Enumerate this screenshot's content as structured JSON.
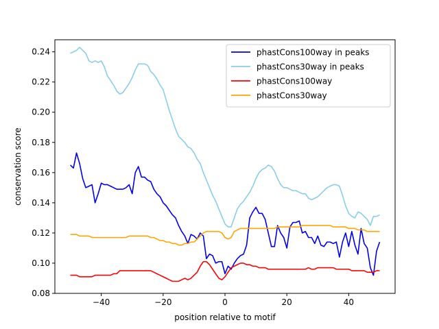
{
  "chart_data": {
    "type": "line",
    "title": "",
    "xlabel": "position relative to motif",
    "ylabel": "conservation score",
    "xlim": [
      -55,
      55
    ],
    "ylim": [
      0.08,
      0.248
    ],
    "xticks": [
      -40,
      -20,
      0,
      20,
      40
    ],
    "yticks": [
      0.08,
      0.1,
      0.12,
      0.14,
      0.16,
      0.18,
      0.2,
      0.22,
      0.24
    ],
    "xtick_labels": [
      "−40",
      "−20",
      "0",
      "20",
      "40"
    ],
    "ytick_labels": [
      "0.08",
      "0.10",
      "0.12",
      "0.14",
      "0.16",
      "0.18",
      "0.20",
      "0.22",
      "0.24"
    ],
    "legend_position": "upper-right",
    "grid": false,
    "series": [
      {
        "name": "phastCons100way in peaks",
        "color": "#0000ee",
        "x": [
          -50,
          -49,
          -48,
          -47,
          -46,
          -45,
          -44,
          -43,
          -42,
          -41,
          -40,
          -39,
          -38,
          -37,
          -36,
          -35,
          -34,
          -33,
          -32,
          -31,
          -30,
          -29,
          -28,
          -27,
          -26,
          -25,
          -24,
          -23,
          -22,
          -21,
          -20,
          -19,
          -18,
          -17,
          -16,
          -15,
          -14,
          -13,
          -12,
          -11,
          -10,
          -9,
          -8,
          -7,
          -6,
          -5,
          -4,
          -3,
          -2,
          -1,
          0,
          1,
          2,
          3,
          4,
          5,
          6,
          7,
          8,
          9,
          10,
          11,
          12,
          13,
          14,
          15,
          16,
          17,
          18,
          19,
          20,
          21,
          22,
          23,
          24,
          25,
          26,
          27,
          28,
          29,
          30,
          31,
          32,
          33,
          34,
          35,
          36,
          37,
          38,
          39,
          40,
          41,
          42,
          43,
          44,
          45,
          46,
          47,
          48,
          49,
          50
        ],
        "values": [
          0.165,
          0.163,
          0.173,
          0.166,
          0.156,
          0.15,
          0.151,
          0.152,
          0.14,
          0.146,
          0.153,
          0.152,
          0.152,
          0.151,
          0.15,
          0.149,
          0.149,
          0.149,
          0.15,
          0.152,
          0.146,
          0.16,
          0.164,
          0.157,
          0.157,
          0.155,
          0.154,
          0.149,
          0.146,
          0.144,
          0.14,
          0.138,
          0.135,
          0.132,
          0.13,
          0.125,
          0.121,
          0.118,
          0.113,
          0.119,
          0.118,
          0.116,
          0.12,
          0.118,
          0.103,
          0.106,
          0.105,
          0.1,
          0.101,
          0.101,
          0.093,
          0.098,
          0.096,
          0.1,
          0.103,
          0.105,
          0.106,
          0.112,
          0.13,
          0.134,
          0.137,
          0.133,
          0.133,
          0.129,
          0.12,
          0.111,
          0.111,
          0.125,
          0.12,
          0.117,
          0.11,
          0.124,
          0.127,
          0.127,
          0.128,
          0.12,
          0.121,
          0.117,
          0.117,
          0.113,
          0.118,
          0.112,
          0.111,
          0.114,
          0.114,
          0.113,
          0.114,
          0.104,
          0.114,
          0.12,
          0.111,
          0.121,
          0.112,
          0.106,
          0.123,
          0.113,
          0.11,
          0.097,
          0.092,
          0.108,
          0.114
        ]
      },
      {
        "name": "phastCons30way in peaks",
        "color": "#87ceeb",
        "x": [
          -50,
          -49,
          -48,
          -47,
          -46,
          -45,
          -44,
          -43,
          -42,
          -41,
          -40,
          -39,
          -38,
          -37,
          -36,
          -35,
          -34,
          -33,
          -32,
          -31,
          -30,
          -29,
          -28,
          -27,
          -26,
          -25,
          -24,
          -23,
          -22,
          -21,
          -20,
          -19,
          -18,
          -17,
          -16,
          -15,
          -14,
          -13,
          -12,
          -11,
          -10,
          -9,
          -8,
          -7,
          -6,
          -5,
          -4,
          -3,
          -2,
          -1,
          0,
          1,
          2,
          3,
          4,
          5,
          6,
          7,
          8,
          9,
          10,
          11,
          12,
          13,
          14,
          15,
          16,
          17,
          18,
          19,
          20,
          21,
          22,
          23,
          24,
          25,
          26,
          27,
          28,
          29,
          30,
          31,
          32,
          33,
          34,
          35,
          36,
          37,
          38,
          39,
          40,
          41,
          42,
          43,
          44,
          45,
          46,
          47,
          48,
          49,
          50
        ],
        "values": [
          0.239,
          0.24,
          0.241,
          0.243,
          0.241,
          0.239,
          0.234,
          0.233,
          0.234,
          0.233,
          0.234,
          0.23,
          0.224,
          0.221,
          0.218,
          0.214,
          0.212,
          0.213,
          0.216,
          0.219,
          0.223,
          0.228,
          0.232,
          0.232,
          0.232,
          0.231,
          0.227,
          0.225,
          0.222,
          0.218,
          0.215,
          0.208,
          0.201,
          0.195,
          0.189,
          0.184,
          0.182,
          0.18,
          0.177,
          0.176,
          0.173,
          0.169,
          0.166,
          0.16,
          0.155,
          0.15,
          0.145,
          0.141,
          0.136,
          0.131,
          0.126,
          0.124,
          0.124,
          0.13,
          0.136,
          0.139,
          0.141,
          0.144,
          0.147,
          0.151,
          0.156,
          0.16,
          0.162,
          0.163,
          0.165,
          0.164,
          0.161,
          0.156,
          0.152,
          0.15,
          0.15,
          0.149,
          0.148,
          0.148,
          0.147,
          0.146,
          0.146,
          0.143,
          0.142,
          0.143,
          0.144,
          0.146,
          0.148,
          0.15,
          0.151,
          0.152,
          0.152,
          0.151,
          0.145,
          0.138,
          0.133,
          0.131,
          0.13,
          0.134,
          0.133,
          0.131,
          0.129,
          0.125,
          0.131,
          0.131,
          0.132
        ]
      },
      {
        "name": "phastCons100way",
        "color": "#ff0000",
        "x": [
          -50,
          -49,
          -48,
          -47,
          -46,
          -45,
          -44,
          -43,
          -42,
          -41,
          -40,
          -39,
          -38,
          -37,
          -36,
          -35,
          -34,
          -33,
          -32,
          -31,
          -30,
          -29,
          -28,
          -27,
          -26,
          -25,
          -24,
          -23,
          -22,
          -21,
          -20,
          -19,
          -18,
          -17,
          -16,
          -15,
          -14,
          -13,
          -12,
          -11,
          -10,
          -9,
          -8,
          -7,
          -6,
          -5,
          -4,
          -3,
          -2,
          -1,
          0,
          1,
          2,
          3,
          4,
          5,
          6,
          7,
          8,
          9,
          10,
          11,
          12,
          13,
          14,
          15,
          16,
          17,
          18,
          19,
          20,
          21,
          22,
          23,
          24,
          25,
          26,
          27,
          28,
          29,
          30,
          31,
          32,
          33,
          34,
          35,
          36,
          37,
          38,
          39,
          40,
          41,
          42,
          43,
          44,
          45,
          46,
          47,
          48,
          49,
          50
        ],
        "values": [
          0.092,
          0.092,
          0.092,
          0.091,
          0.091,
          0.091,
          0.091,
          0.091,
          0.092,
          0.092,
          0.092,
          0.092,
          0.092,
          0.092,
          0.093,
          0.093,
          0.095,
          0.095,
          0.095,
          0.095,
          0.095,
          0.095,
          0.095,
          0.095,
          0.095,
          0.095,
          0.095,
          0.094,
          0.093,
          0.092,
          0.091,
          0.09,
          0.089,
          0.088,
          0.088,
          0.088,
          0.089,
          0.09,
          0.089,
          0.09,
          0.092,
          0.094,
          0.098,
          0.101,
          0.101,
          0.099,
          0.096,
          0.093,
          0.09,
          0.089,
          0.091,
          0.094,
          0.097,
          0.098,
          0.099,
          0.1,
          0.1,
          0.099,
          0.099,
          0.098,
          0.098,
          0.097,
          0.097,
          0.097,
          0.096,
          0.096,
          0.096,
          0.096,
          0.096,
          0.096,
          0.096,
          0.096,
          0.096,
          0.096,
          0.096,
          0.096,
          0.096,
          0.097,
          0.096,
          0.096,
          0.097,
          0.097,
          0.097,
          0.097,
          0.097,
          0.097,
          0.096,
          0.096,
          0.096,
          0.096,
          0.096,
          0.095,
          0.095,
          0.095,
          0.095,
          0.095,
          0.094,
          0.094,
          0.094,
          0.095,
          0.095
        ]
      },
      {
        "name": "phastCons30way",
        "color": "#ffa500",
        "x": [
          -50,
          -49,
          -48,
          -47,
          -46,
          -45,
          -44,
          -43,
          -42,
          -41,
          -40,
          -39,
          -38,
          -37,
          -36,
          -35,
          -34,
          -33,
          -32,
          -31,
          -30,
          -29,
          -28,
          -27,
          -26,
          -25,
          -24,
          -23,
          -22,
          -21,
          -20,
          -19,
          -18,
          -17,
          -16,
          -15,
          -14,
          -13,
          -12,
          -11,
          -10,
          -9,
          -8,
          -7,
          -6,
          -5,
          -4,
          -3,
          -2,
          -1,
          0,
          1,
          2,
          3,
          4,
          5,
          6,
          7,
          8,
          9,
          10,
          11,
          12,
          13,
          14,
          15,
          16,
          17,
          18,
          19,
          20,
          21,
          22,
          23,
          24,
          25,
          26,
          27,
          28,
          29,
          30,
          31,
          32,
          33,
          34,
          35,
          36,
          37,
          38,
          39,
          40,
          41,
          42,
          43,
          44,
          45,
          46,
          47,
          48,
          49,
          50
        ],
        "values": [
          0.119,
          0.119,
          0.119,
          0.118,
          0.118,
          0.118,
          0.118,
          0.117,
          0.117,
          0.117,
          0.117,
          0.117,
          0.117,
          0.117,
          0.117,
          0.117,
          0.117,
          0.117,
          0.117,
          0.118,
          0.118,
          0.118,
          0.118,
          0.118,
          0.118,
          0.118,
          0.117,
          0.117,
          0.116,
          0.115,
          0.115,
          0.114,
          0.114,
          0.113,
          0.113,
          0.112,
          0.112,
          0.113,
          0.113,
          0.114,
          0.114,
          0.116,
          0.118,
          0.12,
          0.121,
          0.121,
          0.121,
          0.121,
          0.121,
          0.12,
          0.117,
          0.116,
          0.117,
          0.121,
          0.122,
          0.123,
          0.123,
          0.123,
          0.123,
          0.123,
          0.123,
          0.123,
          0.123,
          0.123,
          0.123,
          0.123,
          0.123,
          0.124,
          0.124,
          0.124,
          0.124,
          0.124,
          0.124,
          0.124,
          0.124,
          0.125,
          0.125,
          0.125,
          0.125,
          0.125,
          0.125,
          0.125,
          0.125,
          0.125,
          0.125,
          0.124,
          0.124,
          0.124,
          0.124,
          0.124,
          0.123,
          0.123,
          0.123,
          0.122,
          0.122,
          0.122,
          0.121,
          0.121,
          0.121,
          0.121,
          0.121
        ]
      }
    ]
  }
}
